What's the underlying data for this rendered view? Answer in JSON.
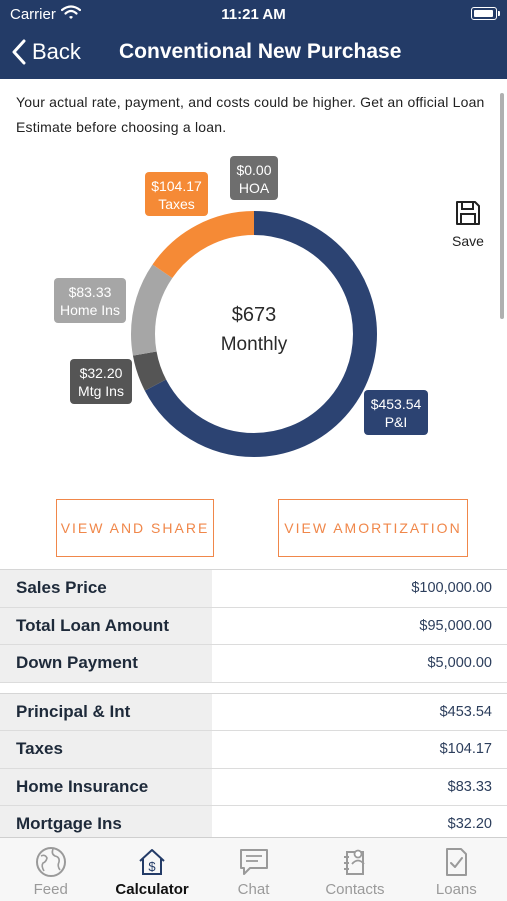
{
  "status_bar": {
    "carrier": "Carrier",
    "time": "11:21 AM"
  },
  "nav": {
    "back_label": "Back",
    "title": "Conventional New Purchase"
  },
  "disclaimer": "Your actual rate, payment, and costs could be higher. Get an official Loan Estimate before choosing a loan.",
  "chart_data": {
    "type": "pie",
    "center_amount": "$673",
    "center_caption": "Monthly",
    "slices": [
      {
        "amount": "$453.54",
        "name": "P&I",
        "value": 453.54,
        "color": "#2c4372"
      },
      {
        "amount": "$32.20",
        "name": "Mtg Ins",
        "value": 32.2,
        "color": "#555555"
      },
      {
        "amount": "$83.33",
        "name": "Home Ins",
        "value": 83.33,
        "color": "#a6a6a6"
      },
      {
        "amount": "$104.17",
        "name": "Taxes",
        "value": 104.17,
        "color": "#f58a36"
      },
      {
        "amount": "$0.00",
        "name": "HOA",
        "value": 0.0,
        "color": "#6e6e6e"
      }
    ]
  },
  "save_label": "Save",
  "buttons": {
    "share": "VIEW AND SHARE",
    "amortization": "VIEW AMORTIZATION"
  },
  "tables": [
    {
      "rows": [
        {
          "label": "Sales Price",
          "value": "$100,000.00"
        },
        {
          "label": "Total Loan Amount",
          "value": "$95,000.00"
        },
        {
          "label": "Down Payment",
          "value": "$5,000.00"
        }
      ]
    },
    {
      "rows": [
        {
          "label": "Principal & Int",
          "value": "$453.54"
        },
        {
          "label": "Taxes",
          "value": "$104.17"
        },
        {
          "label": "Home Insurance",
          "value": "$83.33"
        },
        {
          "label": "Mortgage Ins",
          "value": "$32.20"
        }
      ]
    }
  ],
  "tabs": [
    {
      "label": "Feed",
      "icon": "globe-icon",
      "active": false
    },
    {
      "label": "Calculator",
      "icon": "calculator-house-icon",
      "active": true
    },
    {
      "label": "Chat",
      "icon": "chat-icon",
      "active": false
    },
    {
      "label": "Contacts",
      "icon": "contacts-icon",
      "active": false
    },
    {
      "label": "Loans",
      "icon": "document-check-icon",
      "active": false
    }
  ]
}
